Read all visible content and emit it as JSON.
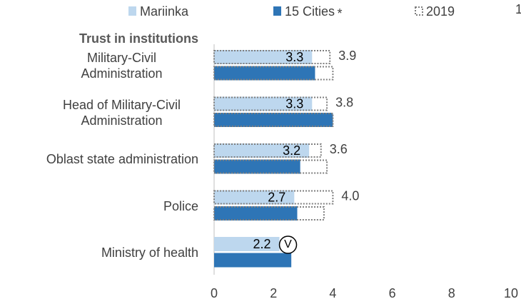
{
  "chart_data": {
    "type": "bar",
    "orientation": "horizontal",
    "title": "Trust in institutions",
    "categories": [
      "Military-Civil Administration",
      "Head of Military-Civil Administration",
      "Oblast state administration",
      "Police",
      "Ministry of health"
    ],
    "series": [
      {
        "name": "Mariinka",
        "color": "#bdd7ee",
        "values": [
          3.3,
          3.3,
          3.2,
          2.7,
          2.2
        ]
      },
      {
        "name": "15 Cities",
        "color": "#2e75b6",
        "values": [
          3.4,
          4.0,
          2.9,
          2.8,
          2.6
        ]
      }
    ],
    "comparison": {
      "name": "2019",
      "color": "#7f7f7f",
      "series": [
        {
          "values": [
            3.9,
            3.8,
            3.6,
            4.0,
            null
          ],
          "value_labels": [
            "3.9",
            "3.8",
            "3.6",
            "4.0",
            null
          ]
        },
        {
          "values": [
            4.0,
            4.0,
            3.8,
            3.7,
            null
          ]
        }
      ]
    },
    "legend_note": "*",
    "annotation": {
      "text": "V",
      "category": 4
    },
    "corner_note": "1",
    "xlim": [
      0,
      10
    ],
    "xticks": [
      0,
      2,
      4,
      6,
      8,
      10
    ],
    "grid": false,
    "legend": "top"
  }
}
